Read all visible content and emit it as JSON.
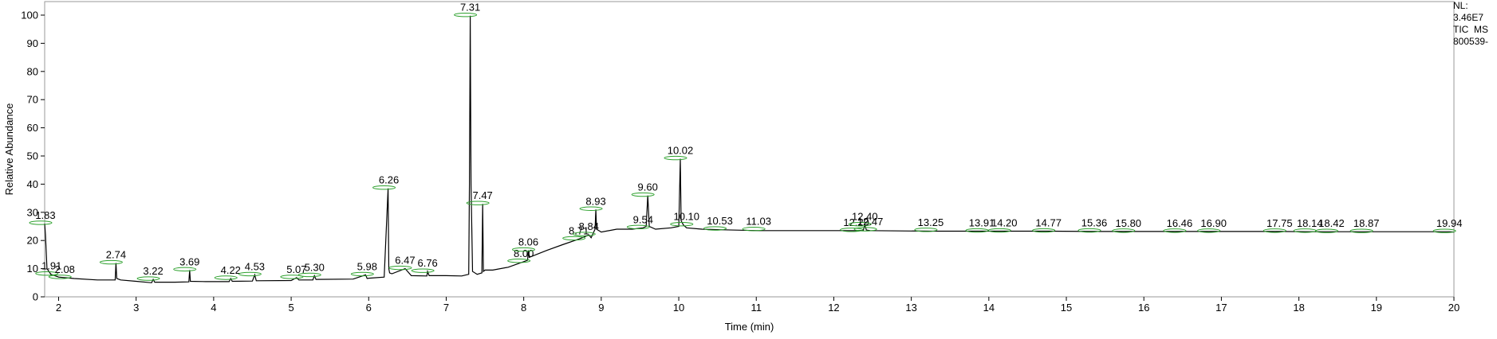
{
  "info": {
    "nl_label": "NL:",
    "nl_value": "3.46E7",
    "scan_line": "TIC  MS",
    "sample_id": "800539-"
  },
  "chart_data": {
    "type": "line",
    "title": "",
    "xlabel": "Time (min)",
    "ylabel": "Relative Abundance",
    "xlim": [
      1.82,
      20
    ],
    "ylim": [
      0,
      100
    ],
    "xticks": [
      2,
      3,
      4,
      5,
      6,
      7,
      8,
      9,
      10,
      11,
      12,
      13,
      14,
      15,
      16,
      17,
      18,
      19,
      20
    ],
    "yticks": [
      0,
      10,
      20,
      30,
      40,
      50,
      60,
      70,
      80,
      90,
      100
    ],
    "grid": false,
    "legend": "none",
    "colors": {
      "trace": "#000000",
      "peak_marker": "#2ca02c",
      "frame": "#9a9a9a"
    },
    "series": [
      {
        "x": [
          1.82,
          1.83,
          1.85,
          1.9,
          2.0,
          2.2,
          2.5,
          2.73,
          2.74,
          2.75,
          2.8,
          3.0,
          3.2,
          3.22,
          3.24,
          3.5,
          3.68,
          3.69,
          3.7,
          3.9,
          4.2,
          4.22,
          4.24,
          4.5,
          4.53,
          4.55,
          5.0,
          5.07,
          5.1,
          5.28,
          5.3,
          5.32,
          5.8,
          5.96,
          5.98,
          6.0,
          6.2,
          6.25,
          6.26,
          6.27,
          6.3,
          6.47,
          6.55,
          6.75,
          6.76,
          6.78,
          7.0,
          7.2,
          7.29,
          7.3,
          7.31,
          7.32,
          7.34,
          7.4,
          7.46,
          7.47,
          7.48,
          7.5,
          7.6,
          7.8,
          8.0,
          8.05,
          8.06,
          8.07,
          8.3,
          8.5,
          8.71,
          8.8,
          8.84,
          8.87,
          8.92,
          8.93,
          8.94,
          9.0,
          9.2,
          9.4,
          9.54,
          9.58,
          9.6,
          9.62,
          9.7,
          9.9,
          10.0,
          10.02,
          10.03,
          10.06,
          10.1,
          10.3,
          10.53,
          11.03,
          11.5,
          12.29,
          12.38,
          12.4,
          12.42,
          12.47,
          13.25,
          13.91,
          14.2,
          14.77,
          15.36,
          15.8,
          16.46,
          16.9,
          17.75,
          18.14,
          18.42,
          18.87,
          19.5,
          19.94,
          20.0
        ],
        "y": [
          26,
          22,
          10,
          8,
          7,
          6.5,
          6,
          6,
          12,
          6.5,
          6,
          5.5,
          5,
          6.2,
          5.2,
          5.2,
          5.3,
          9.5,
          5.5,
          5.4,
          5.4,
          6.5,
          5.5,
          5.6,
          7.8,
          5.7,
          5.8,
          6.8,
          6,
          6,
          7.5,
          6.2,
          6.3,
          7.8,
          6.5,
          6.6,
          7,
          38.5,
          10,
          8.5,
          8.2,
          10,
          7.5,
          7.4,
          9,
          7.5,
          7.5,
          7.4,
          8,
          40,
          99.8,
          40,
          9,
          8,
          8.5,
          33,
          9,
          9.5,
          9.5,
          10.5,
          12.5,
          13,
          16.5,
          14,
          16.5,
          18.5,
          20.5,
          21.5,
          22,
          21,
          24,
          31,
          24,
          23,
          24,
          24,
          24.5,
          25,
          36,
          25,
          24,
          24.5,
          25,
          49,
          27,
          25.5,
          24.5,
          24,
          23.8,
          23.5,
          23.5,
          23.5,
          23.6,
          25.5,
          23.7,
          23.5,
          23.3,
          23.3,
          23.3,
          23.3,
          23.2,
          23.2,
          23.2,
          23.2,
          23.2,
          23.1,
          23.1,
          23.1,
          23.1,
          23.1,
          23
        ]
      }
    ],
    "peaks": [
      {
        "label": "1.83",
        "x": 1.83,
        "y": 26
      },
      {
        "label": "1.91",
        "x": 1.91,
        "y": 8
      },
      {
        "label": "2.08",
        "x": 2.08,
        "y": 6.8
      },
      {
        "label": "2.74",
        "x": 2.74,
        "y": 12
      },
      {
        "label": "3.22",
        "x": 3.22,
        "y": 6.2
      },
      {
        "label": "3.69",
        "x": 3.69,
        "y": 9.5
      },
      {
        "label": "4.22",
        "x": 4.22,
        "y": 6.5
      },
      {
        "label": "4.53",
        "x": 4.53,
        "y": 7.8
      },
      {
        "label": "5.07",
        "x": 5.07,
        "y": 6.8
      },
      {
        "label": "5.30",
        "x": 5.3,
        "y": 7.5
      },
      {
        "label": "5.98",
        "x": 5.98,
        "y": 7.8
      },
      {
        "label": "6.26",
        "x": 6.26,
        "y": 38.5
      },
      {
        "label": "6.47",
        "x": 6.47,
        "y": 10
      },
      {
        "label": "6.76",
        "x": 6.76,
        "y": 9
      },
      {
        "label": "7.31",
        "x": 7.31,
        "y": 99.8
      },
      {
        "label": "7.47",
        "x": 7.47,
        "y": 33
      },
      {
        "label": "8.00",
        "x": 8.0,
        "y": 12.5
      },
      {
        "label": "8.06",
        "x": 8.06,
        "y": 16.5
      },
      {
        "label": "8.71",
        "x": 8.71,
        "y": 20.5
      },
      {
        "label": "8.84",
        "x": 8.84,
        "y": 22
      },
      {
        "label": "8.93",
        "x": 8.93,
        "y": 31
      },
      {
        "label": "9.54",
        "x": 9.54,
        "y": 24.5
      },
      {
        "label": "9.60",
        "x": 9.6,
        "y": 36
      },
      {
        "label": "10.02",
        "x": 10.02,
        "y": 49
      },
      {
        "label": "10.10",
        "x": 10.1,
        "y": 25.5
      },
      {
        "label": "10.53",
        "x": 10.53,
        "y": 24
      },
      {
        "label": "11.03",
        "x": 11.03,
        "y": 23.8
      },
      {
        "label": "12.29",
        "x": 12.29,
        "y": 23.5
      },
      {
        "label": "12.40",
        "x": 12.4,
        "y": 25.5
      },
      {
        "label": "12.47",
        "x": 12.47,
        "y": 23.7
      },
      {
        "label": "13.25",
        "x": 13.25,
        "y": 23.5
      },
      {
        "label": "13.91",
        "x": 13.91,
        "y": 23.3
      },
      {
        "label": "14.20",
        "x": 14.2,
        "y": 23.3
      },
      {
        "label": "14.77",
        "x": 14.77,
        "y": 23.3
      },
      {
        "label": "15.36",
        "x": 15.36,
        "y": 23.3
      },
      {
        "label": "15.80",
        "x": 15.8,
        "y": 23.2
      },
      {
        "label": "16.46",
        "x": 16.46,
        "y": 23.2
      },
      {
        "label": "16.90",
        "x": 16.9,
        "y": 23.2
      },
      {
        "label": "17.75",
        "x": 17.75,
        "y": 23.2
      },
      {
        "label": "18.14",
        "x": 18.14,
        "y": 23.2
      },
      {
        "label": "18.42",
        "x": 18.42,
        "y": 23.1
      },
      {
        "label": "18.87",
        "x": 18.87,
        "y": 23.1
      },
      {
        "label": "19.94",
        "x": 19.94,
        "y": 23.1
      }
    ]
  }
}
